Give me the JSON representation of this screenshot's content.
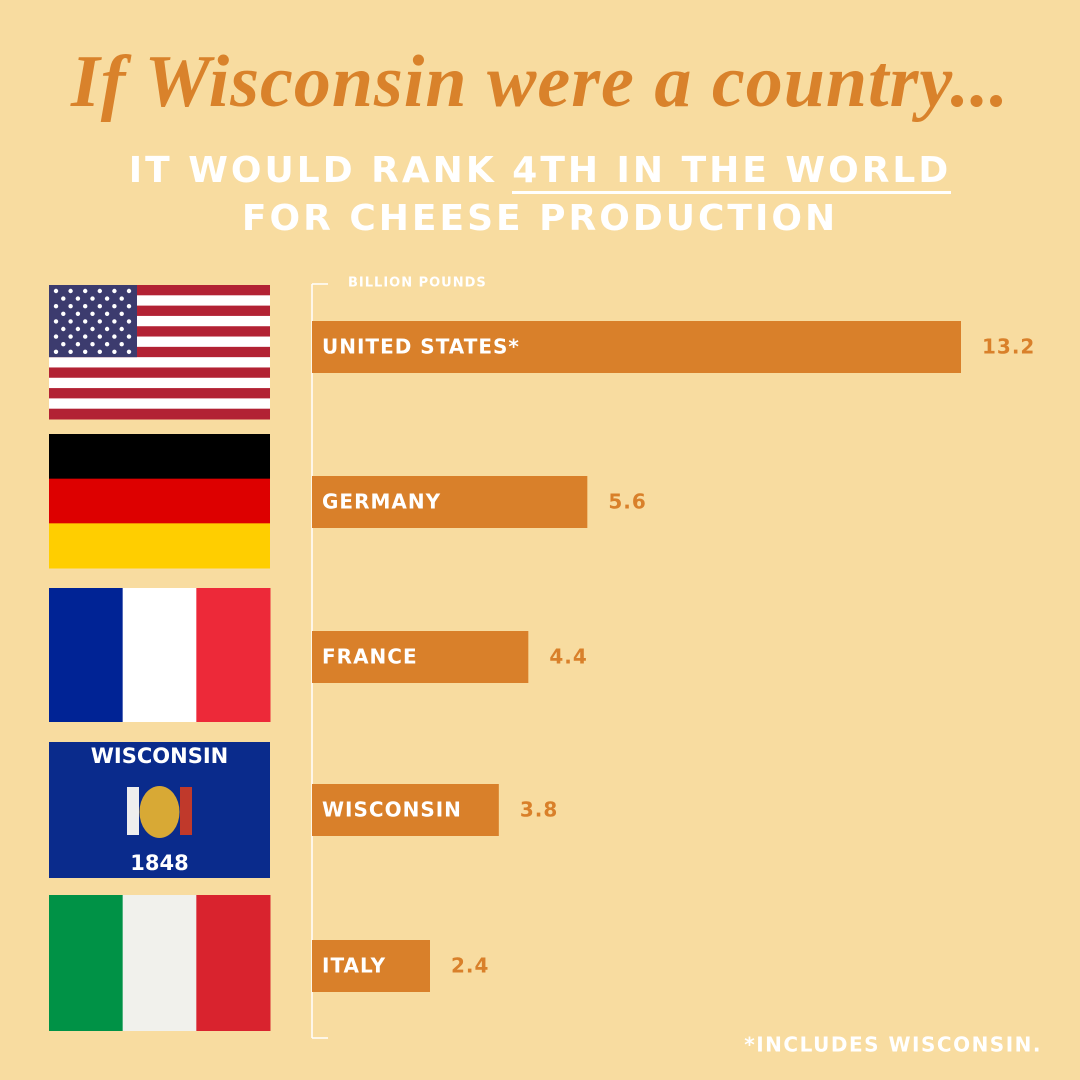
{
  "chart_data": {
    "type": "bar",
    "orientation": "horizontal",
    "title": "If Wisconsin were a country...",
    "subtitle": [
      "IT WOULD RANK",
      "4TH IN THE WORLD",
      "FOR CHEESE PRODUCTION"
    ],
    "x_label": "BILLION POUNDS",
    "categories": [
      "UNITED STATES*",
      "GERMANY",
      "FRANCE",
      "WISCONSIN",
      "ITALY"
    ],
    "values": [
      13.2,
      5.6,
      4.4,
      3.8,
      2.4
    ],
    "color": "#d9802a",
    "xlim": [
      0,
      13.2
    ],
    "footnote": "*INCLUDES WISCONSIN.",
    "flag_texts": [
      "WISCONSIN",
      "1848"
    ]
  }
}
